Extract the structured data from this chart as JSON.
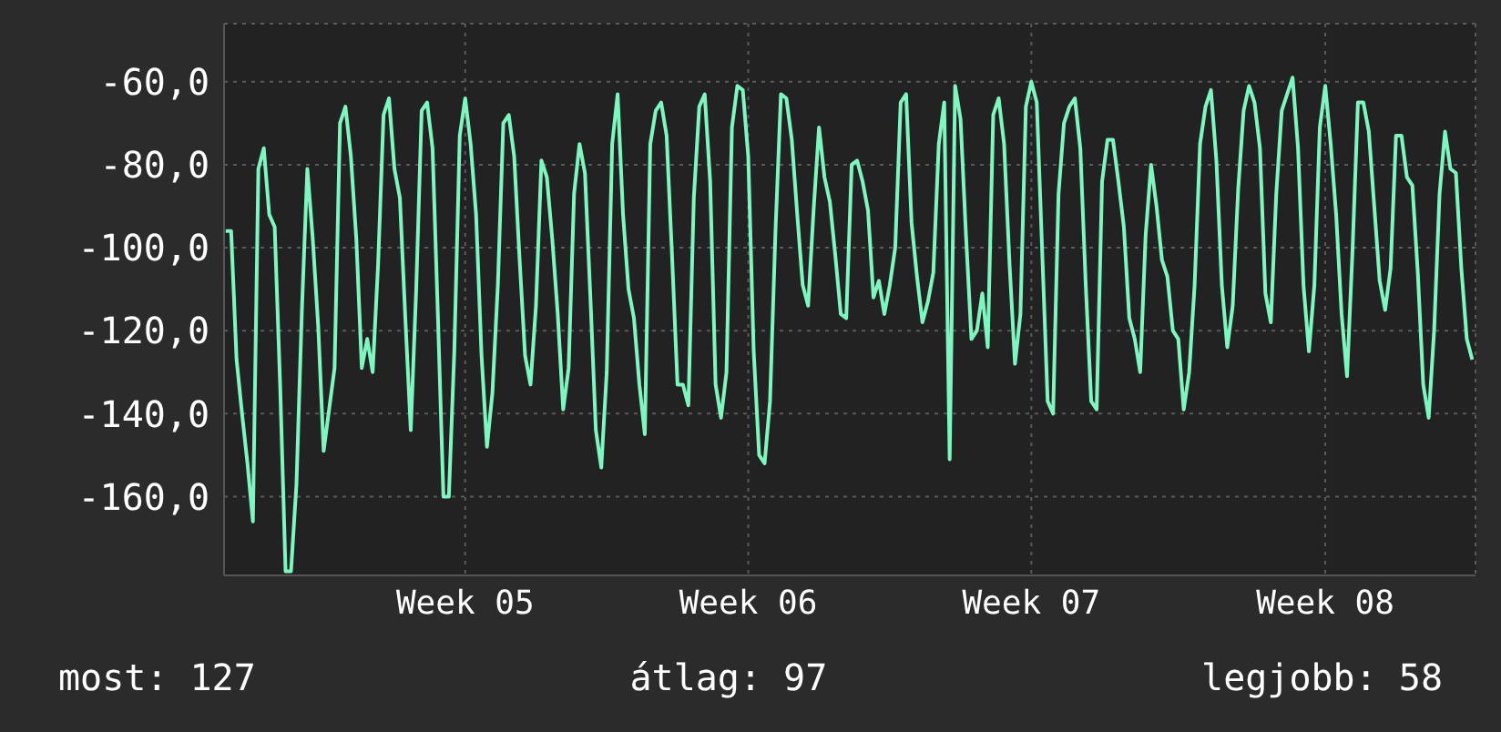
{
  "chart_data": {
    "type": "line",
    "color": "#7ff5bf",
    "marker": "none",
    "grid": true,
    "legend": false,
    "ylim": [
      -179,
      -46
    ],
    "yticks": [
      {
        "value": -160,
        "label": "-160,0"
      },
      {
        "value": -140,
        "label": "-140,0"
      },
      {
        "value": -120,
        "label": "-120,0"
      },
      {
        "value": -100,
        "label": "-100,0"
      },
      {
        "value": -80,
        "label": "-80,0"
      },
      {
        "value": -60,
        "label": "-60,0"
      }
    ],
    "categories": [
      null,
      null,
      null,
      null,
      null,
      null,
      null,
      null,
      null,
      null,
      null,
      null,
      null,
      null,
      null,
      null,
      null,
      null,
      null,
      null,
      null,
      null,
      null,
      null,
      null,
      null,
      null,
      null,
      null,
      null,
      null,
      null,
      null,
      null,
      null,
      null,
      null,
      null,
      null,
      null,
      null,
      null,
      null,
      null,
      "Week 05",
      null,
      null,
      null,
      null,
      null,
      null,
      null,
      null,
      null,
      null,
      null,
      null,
      null,
      null,
      null,
      null,
      null,
      null,
      null,
      null,
      null,
      null,
      null,
      null,
      null,
      null,
      null,
      null,
      null,
      null,
      null,
      null,
      null,
      null,
      null,
      null,
      null,
      null,
      null,
      null,
      null,
      null,
      null,
      null,
      null,
      null,
      null,
      null,
      null,
      null,
      null,
      "Week 06",
      null,
      null,
      null,
      null,
      null,
      null,
      null,
      null,
      null,
      null,
      null,
      null,
      null,
      null,
      null,
      null,
      null,
      null,
      null,
      null,
      null,
      null,
      null,
      null,
      null,
      null,
      null,
      null,
      null,
      null,
      null,
      null,
      null,
      null,
      null,
      null,
      null,
      null,
      null,
      null,
      null,
      null,
      null,
      null,
      null,
      null,
      null,
      null,
      null,
      null,
      null,
      "Week 07",
      null,
      null,
      null,
      null,
      null,
      null,
      null,
      null,
      null,
      null,
      null,
      null,
      null,
      null,
      null,
      null,
      null,
      null,
      null,
      null,
      null,
      null,
      null,
      null,
      null,
      null,
      null,
      null,
      null,
      null,
      null,
      null,
      null,
      null,
      null,
      null,
      null,
      null,
      null,
      null,
      null,
      null,
      null,
      null,
      null,
      null,
      null,
      null,
      null,
      null,
      null,
      null,
      null,
      "Week 08",
      null,
      null,
      null,
      null,
      null,
      null,
      null,
      null,
      null,
      null,
      null,
      null,
      null,
      null,
      null,
      null,
      null,
      null,
      null,
      null,
      null,
      null,
      null,
      null,
      null,
      null,
      null
    ],
    "values": [
      -96,
      -96,
      -127,
      -140,
      -152,
      -166,
      -81,
      -76,
      -92,
      -95,
      -133,
      -178,
      -178,
      -157,
      -115,
      -81,
      -98,
      -119,
      -149,
      -139,
      -129,
      -70,
      -66,
      -78,
      -98,
      -129,
      -122,
      -130,
      -104,
      -68,
      -64,
      -81,
      -88,
      -117,
      -144,
      -110,
      -67,
      -65,
      -76,
      -117,
      -160,
      -160,
      -125,
      -73,
      -64,
      -75,
      -92,
      -126,
      -148,
      -135,
      -109,
      -70,
      -68,
      -78,
      -103,
      -126,
      -133,
      -114,
      -79,
      -83,
      -98,
      -116,
      -139,
      -129,
      -87,
      -75,
      -82,
      -112,
      -144,
      -153,
      -130,
      -75,
      -63,
      -92,
      -110,
      -117,
      -133,
      -145,
      -75,
      -67,
      -65,
      -73,
      -102,
      -133,
      -133,
      -138,
      -88,
      -66,
      -63,
      -84,
      -133,
      -141,
      -130,
      -71,
      -61,
      -62,
      -78,
      -125,
      -150,
      -152,
      -137,
      -96,
      -63,
      -64,
      -74,
      -92,
      -109,
      -114,
      -91,
      -71,
      -83,
      -89,
      -102,
      -116,
      -117,
      -80,
      -79,
      -84,
      -91,
      -112,
      -108,
      -116,
      -109,
      -100,
      -65,
      -63,
      -94,
      -107,
      -118,
      -113,
      -106,
      -75,
      -65,
      -151,
      -61,
      -69,
      -97,
      -122,
      -120,
      -111,
      -124,
      -68,
      -64,
      -75,
      -104,
      -128,
      -116,
      -66,
      -60,
      -65,
      -101,
      -137,
      -140,
      -87,
      -70,
      -66,
      -64,
      -76,
      -109,
      -137,
      -139,
      -84,
      -74,
      -74,
      -84,
      -95,
      -117,
      -122,
      -130,
      -97,
      -80,
      -90,
      -103,
      -107,
      -120,
      -122,
      -139,
      -130,
      -109,
      -75,
      -66,
      -62,
      -79,
      -109,
      -124,
      -114,
      -86,
      -67,
      -61,
      -65,
      -76,
      -111,
      -118,
      -87,
      -67,
      -63,
      -59,
      -76,
      -109,
      -125,
      -109,
      -71,
      -61,
      -75,
      -92,
      -116,
      -131,
      -101,
      -65,
      -65,
      -72,
      -90,
      -108,
      -115,
      -105,
      -73,
      -73,
      -83,
      -85,
      -106,
      -133,
      -141,
      -120,
      -87,
      -72,
      -81,
      -82,
      -105,
      -122,
      -127
    ],
    "annotations": [
      "most: 127",
      "átlag: 97",
      "legjobb: 58"
    ]
  }
}
